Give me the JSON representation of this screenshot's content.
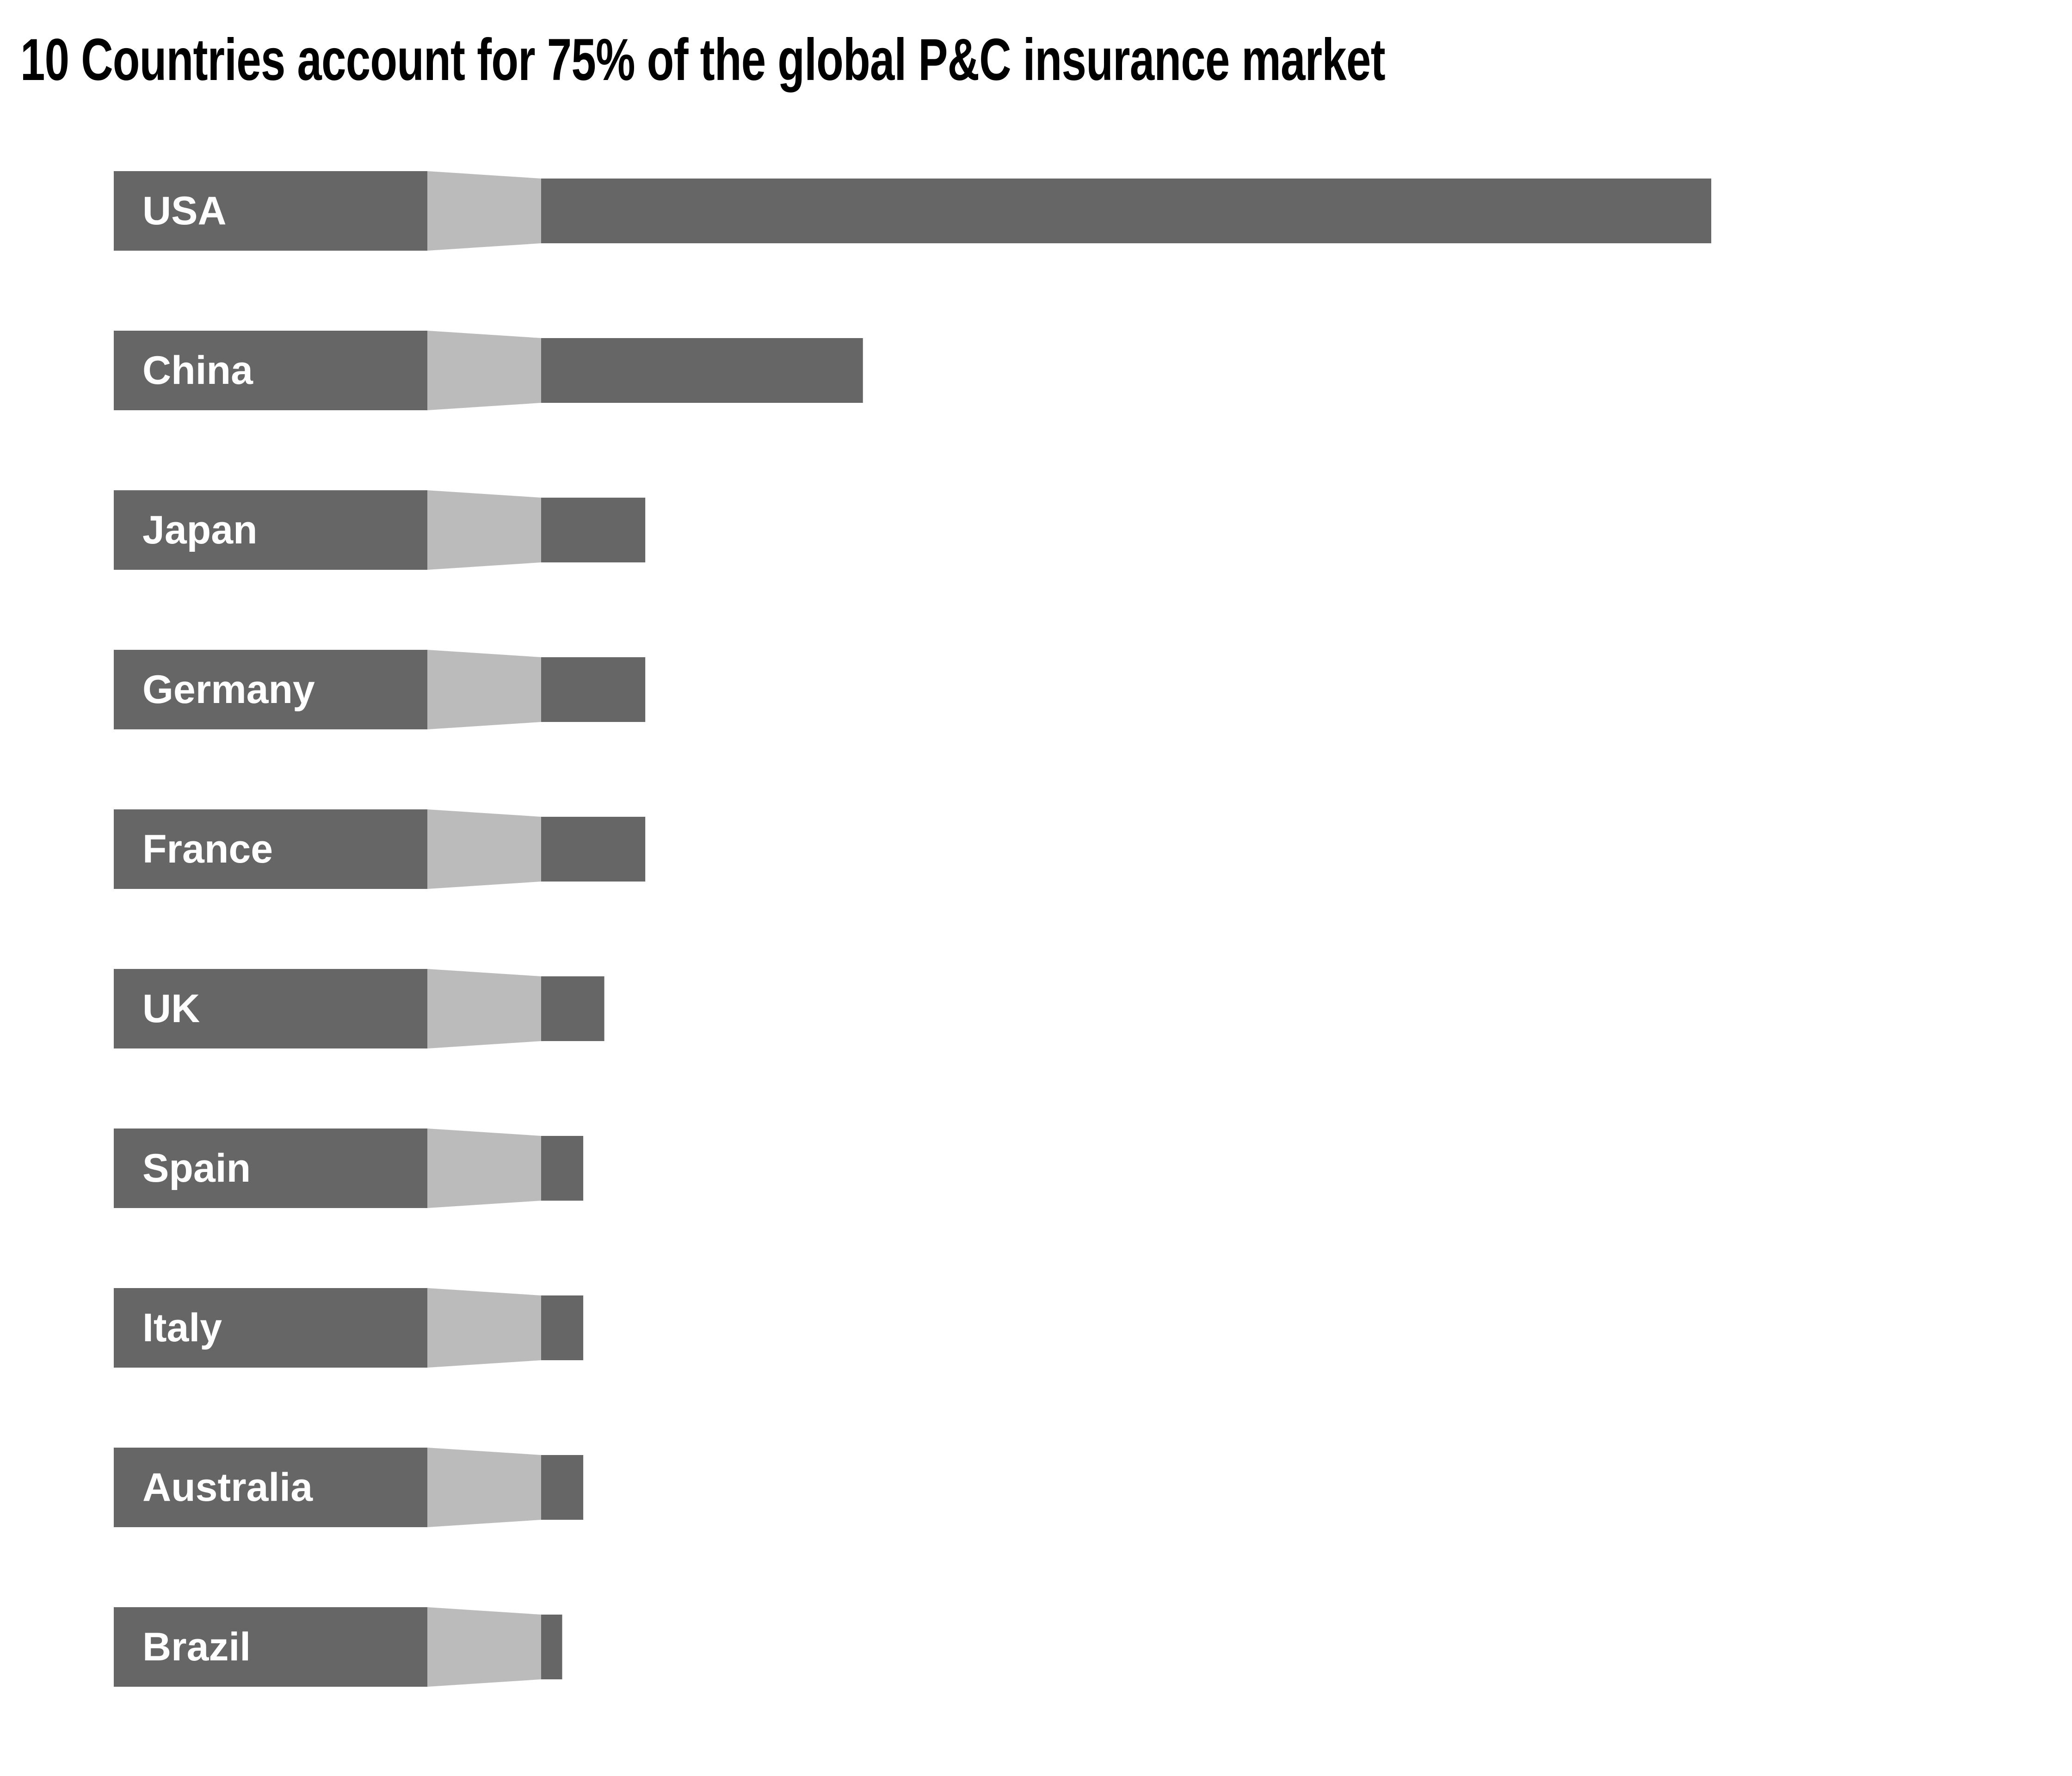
{
  "title": "10 Countries account for 75% of the global P&C insurance market",
  "colors": {
    "bar": "#666666",
    "connector": "#bbbbbb",
    "label_text": "#ffffff",
    "background": "#ffffff"
  },
  "chart_data": {
    "type": "bar",
    "orientation": "horizontal",
    "title": "10 Countries account for 75% of the global P&C insurance market",
    "xlabel": "",
    "ylabel": "",
    "axes_visible": false,
    "grid": false,
    "legend": "none",
    "value_unit": "relative bar length (no axis or data labels shown)",
    "xlim": [
      0,
      100
    ],
    "categories": [
      "USA",
      "China",
      "Japan",
      "Germany",
      "France",
      "UK",
      "Spain",
      "Italy",
      "Australia",
      "Brazil"
    ],
    "values": [
      100,
      27.5,
      8.9,
      8.9,
      8.9,
      5.4,
      3.6,
      3.6,
      3.6,
      1.8
    ]
  }
}
